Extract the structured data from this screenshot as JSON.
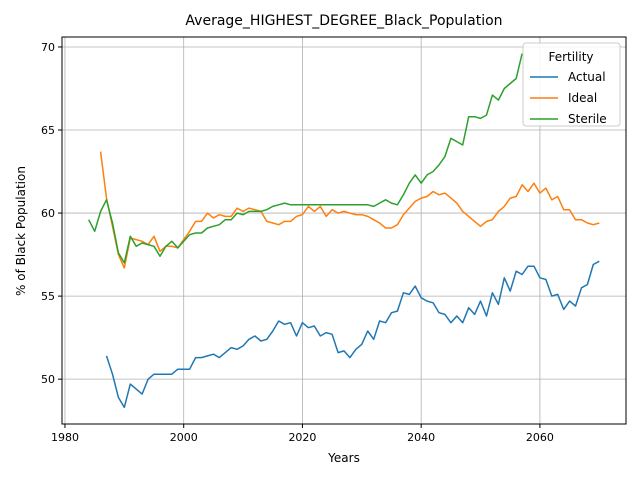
{
  "chart_data": {
    "type": "line",
    "title": "Average_HIGHEST_DEGREE_Black_Population",
    "xlabel": "Years",
    "ylabel": "% of Black Population",
    "xlim": [
      1979.5,
      2074.5
    ],
    "ylim": [
      47.3,
      70.6
    ],
    "xticks": [
      1980,
      2000,
      2020,
      2040,
      2060
    ],
    "yticks": [
      50,
      55,
      60,
      65,
      70
    ],
    "xtick_labels": [
      "1980",
      "2000",
      "2020",
      "2040",
      "2060"
    ],
    "ytick_labels": [
      "50",
      "55",
      "60",
      "65",
      "70"
    ],
    "grid": true,
    "legend": {
      "title": "Fertility",
      "placement": "top-right"
    },
    "series": [
      {
        "name": "Actual",
        "color": "#1f77b4",
        "x": [
          1987,
          1988,
          1989,
          1990,
          1991,
          1992,
          1993,
          1994,
          1995,
          1996,
          1997,
          1998,
          1999,
          2000,
          2001,
          2002,
          2003,
          2004,
          2005,
          2006,
          2007,
          2008,
          2009,
          2010,
          2011,
          2012,
          2013,
          2014,
          2015,
          2016,
          2017,
          2018,
          2019,
          2020,
          2021,
          2022,
          2023,
          2024,
          2025,
          2026,
          2027,
          2028,
          2029,
          2030,
          2031,
          2032,
          2033,
          2034,
          2035,
          2036,
          2037,
          2038,
          2039,
          2040,
          2041,
          2042,
          2043,
          2044,
          2045,
          2046,
          2047,
          2048,
          2049,
          2050,
          2051,
          2052,
          2053,
          2054,
          2055,
          2056,
          2057,
          2058,
          2059,
          2060,
          2061,
          2062,
          2063,
          2064,
          2065,
          2066,
          2067,
          2068,
          2069,
          2070
        ],
        "y": [
          51.4,
          50.3,
          48.9,
          48.3,
          49.7,
          49.4,
          49.1,
          50.0,
          50.3,
          50.3,
          50.3,
          50.3,
          50.6,
          50.6,
          50.6,
          51.3,
          51.3,
          51.4,
          51.5,
          51.3,
          51.6,
          51.9,
          51.8,
          52.0,
          52.4,
          52.6,
          52.3,
          52.4,
          52.9,
          53.5,
          53.3,
          53.4,
          52.6,
          53.4,
          53.1,
          53.2,
          52.6,
          52.8,
          52.7,
          51.6,
          51.7,
          51.3,
          51.8,
          52.1,
          52.9,
          52.4,
          53.5,
          53.4,
          54.0,
          54.1,
          55.2,
          55.1,
          55.6,
          54.9,
          54.7,
          54.6,
          54.0,
          53.9,
          53.4,
          53.8,
          53.4,
          54.3,
          53.9,
          54.7,
          53.8,
          55.2,
          54.5,
          56.1,
          55.3,
          56.5,
          56.3,
          56.8,
          56.8,
          56.1,
          56.0,
          55.0,
          55.1,
          54.2,
          54.7,
          54.4,
          55.5,
          55.7,
          56.9,
          57.1
        ]
      },
      {
        "name": "Ideal",
        "color": "#ff7f0e",
        "x": [
          1986,
          1987,
          1988,
          1989,
          1990,
          1991,
          1992,
          1993,
          1994,
          1995,
          1996,
          1997,
          1998,
          1999,
          2000,
          2001,
          2002,
          2003,
          2004,
          2005,
          2006,
          2007,
          2008,
          2009,
          2010,
          2011,
          2012,
          2013,
          2014,
          2015,
          2016,
          2017,
          2018,
          2019,
          2020,
          2021,
          2022,
          2023,
          2024,
          2025,
          2026,
          2027,
          2028,
          2029,
          2030,
          2031,
          2032,
          2033,
          2034,
          2035,
          2036,
          2037,
          2038,
          2039,
          2040,
          2041,
          2042,
          2043,
          2044,
          2045,
          2046,
          2047,
          2048,
          2049,
          2050,
          2051,
          2052,
          2053,
          2054,
          2055,
          2056,
          2057,
          2058,
          2059,
          2060,
          2061,
          2062,
          2063,
          2064,
          2065,
          2066,
          2067,
          2068,
          2069,
          2070
        ],
        "y": [
          63.7,
          60.9,
          59.2,
          57.5,
          56.7,
          58.5,
          58.4,
          58.3,
          58.1,
          58.6,
          57.7,
          58.0,
          58.0,
          57.9,
          58.4,
          58.9,
          59.5,
          59.5,
          60.0,
          59.7,
          59.9,
          59.8,
          59.8,
          60.3,
          60.1,
          60.3,
          60.2,
          60.1,
          59.5,
          59.4,
          59.3,
          59.5,
          59.5,
          59.8,
          59.9,
          60.4,
          60.1,
          60.4,
          59.8,
          60.2,
          60.0,
          60.1,
          60.0,
          59.9,
          59.9,
          59.8,
          59.6,
          59.4,
          59.1,
          59.1,
          59.3,
          59.9,
          60.3,
          60.7,
          60.9,
          61.0,
          61.3,
          61.1,
          61.2,
          60.9,
          60.6,
          60.1,
          59.8,
          59.5,
          59.2,
          59.5,
          59.6,
          60.1,
          60.4,
          60.9,
          61.0,
          61.7,
          61.3,
          61.8,
          61.2,
          61.5,
          60.8,
          61.0,
          60.2,
          60.2,
          59.6,
          59.6,
          59.4,
          59.3,
          59.4
        ]
      },
      {
        "name": "Sterile",
        "color": "#2ca02c",
        "x": [
          1984,
          1985,
          1986,
          1987,
          1988,
          1989,
          1990,
          1991,
          1992,
          1993,
          1994,
          1995,
          1996,
          1997,
          1998,
          1999,
          2000,
          2001,
          2002,
          2003,
          2004,
          2005,
          2006,
          2007,
          2008,
          2009,
          2010,
          2011,
          2012,
          2013,
          2014,
          2015,
          2016,
          2017,
          2018,
          2019,
          2020,
          2021,
          2022,
          2023,
          2024,
          2025,
          2026,
          2027,
          2028,
          2029,
          2030,
          2031,
          2032,
          2033,
          2034,
          2035,
          2036,
          2037,
          2038,
          2039,
          2040,
          2041,
          2042,
          2043,
          2044,
          2045,
          2046,
          2047,
          2048,
          2049,
          2050,
          2051,
          2052,
          2053,
          2054,
          2055,
          2056,
          2057
        ],
        "y": [
          59.6,
          58.9,
          60.1,
          60.8,
          59.4,
          57.6,
          57.0,
          58.6,
          58.0,
          58.2,
          58.1,
          58.0,
          57.4,
          58.0,
          58.3,
          57.9,
          58.3,
          58.7,
          58.8,
          58.8,
          59.1,
          59.2,
          59.3,
          59.6,
          59.6,
          60.0,
          59.9,
          60.1,
          60.1,
          60.1,
          60.2,
          60.4,
          60.5,
          60.6,
          60.5,
          60.5,
          60.5,
          60.5,
          60.5,
          60.5,
          60.5,
          60.5,
          60.5,
          60.5,
          60.5,
          60.5,
          60.5,
          60.5,
          60.4,
          60.6,
          60.8,
          60.6,
          60.5,
          61.1,
          61.8,
          62.3,
          61.8,
          62.3,
          62.5,
          62.9,
          63.4,
          64.5,
          64.3,
          64.1,
          65.8,
          65.8,
          65.7,
          65.9,
          67.1,
          66.8,
          67.5,
          67.8,
          68.1,
          69.6
        ]
      }
    ]
  }
}
